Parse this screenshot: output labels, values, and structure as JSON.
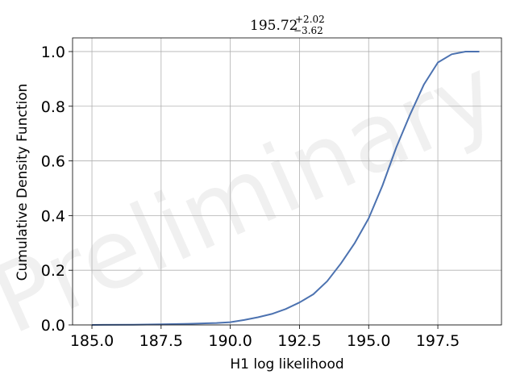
{
  "chart_data": {
    "type": "line",
    "title": {
      "main": "195.72",
      "upper": "+2.02",
      "lower": "−3.62"
    },
    "xlabel": "H1 log likelihood",
    "ylabel": "Cumulative Density Function",
    "xlim": [
      184.3,
      199.8
    ],
    "ylim": [
      0.0,
      1.05
    ],
    "xticks": [
      185.0,
      187.5,
      190.0,
      192.5,
      195.0,
      197.5
    ],
    "xtick_labels": [
      "185.0",
      "187.5",
      "190.0",
      "192.5",
      "195.0",
      "197.5"
    ],
    "yticks": [
      0.0,
      0.2,
      0.4,
      0.6,
      0.8,
      1.0
    ],
    "ytick_labels": [
      "0.0",
      "0.2",
      "0.4",
      "0.6",
      "0.8",
      "1.0"
    ],
    "grid": true,
    "line_color": "#4c72b0",
    "watermark": "Preliminary",
    "series": [
      {
        "x": [
          185.0,
          186.5,
          187.5,
          188.5,
          189.5,
          190.0,
          190.5,
          191.0,
          191.5,
          192.0,
          192.5,
          193.0,
          193.5,
          194.0,
          194.5,
          195.0,
          195.5,
          196.0,
          196.5,
          197.0,
          197.5,
          198.0,
          198.5,
          199.0
        ],
        "y": [
          0.0,
          0.001,
          0.002,
          0.004,
          0.007,
          0.01,
          0.018,
          0.028,
          0.04,
          0.058,
          0.082,
          0.112,
          0.16,
          0.225,
          0.3,
          0.39,
          0.51,
          0.65,
          0.77,
          0.88,
          0.96,
          0.99,
          1.0,
          1.0
        ]
      }
    ]
  }
}
